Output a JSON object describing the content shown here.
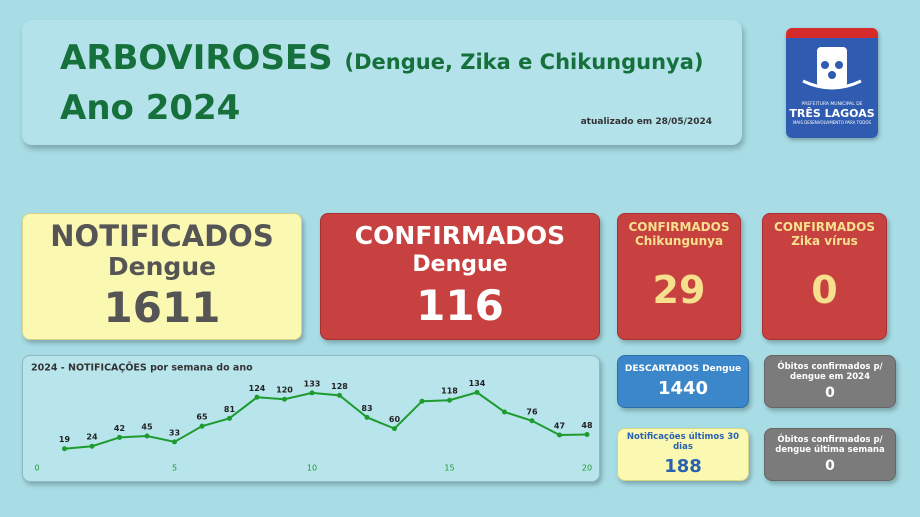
{
  "header": {
    "title": "ARBOVIROSES",
    "subtitle": "(Dengue, Zika e Chikungunya)",
    "year": "Ano 2024",
    "updated": "atualizado em 28/05/2024"
  },
  "logo": {
    "line1": "PREFEITURA MUNICIPAL DE",
    "line2": "TRÊS LAGOAS",
    "line3": "MAIS DESENVOLVIMENTO PARA TODOS"
  },
  "cards": {
    "notified": {
      "label": "NOTIFICADOS",
      "sub": "Dengue",
      "value": "1611"
    },
    "confirmed_dengue": {
      "label": "CONFIRMADOS",
      "sub": "Dengue",
      "value": "116"
    },
    "confirmed_chik": {
      "label": "CONFIRMADOS",
      "sub": "Chikungunya",
      "value": "29"
    },
    "confirmed_zika": {
      "label": "CONFIRMADOS",
      "sub": "Zika vírus",
      "value": "0"
    },
    "discarded": {
      "label": "DESCARTADOS Dengue",
      "value": "1440"
    },
    "last30": {
      "label": "Notificações últimos 30 dias",
      "value": "188"
    },
    "deaths_year": {
      "lines": [
        "Óbitos confirmados p/",
        "dengue em 2024"
      ],
      "value": "0"
    },
    "deaths_week": {
      "lines": [
        "Óbitos confirmados p/",
        "dengue última semana"
      ],
      "value": "0"
    }
  },
  "chart_data": {
    "type": "line",
    "title": "2024 - NOTIFICAÇÕES por semana do ano",
    "x": [
      1,
      2,
      3,
      4,
      5,
      6,
      7,
      8,
      9,
      10,
      11,
      12,
      13,
      14,
      15,
      16,
      17,
      18,
      19,
      20
    ],
    "series": [
      {
        "name": "Notificações",
        "color": "#1e9b2e",
        "values": [
          19,
          24,
          42,
          45,
          33,
          65,
          81,
          124,
          120,
          133,
          128,
          83,
          60,
          116,
          118,
          134,
          94,
          76,
          47,
          48
        ],
        "value_labels": [
          19,
          24,
          42,
          45,
          33,
          65,
          81,
          124,
          120,
          133,
          128,
          83,
          60,
          null,
          118,
          134,
          null,
          76,
          47,
          48
        ]
      }
    ],
    "xlim": [
      0,
      20
    ],
    "xticks": [
      0,
      5,
      10,
      15,
      20
    ],
    "ylim": [
      0,
      145
    ]
  }
}
